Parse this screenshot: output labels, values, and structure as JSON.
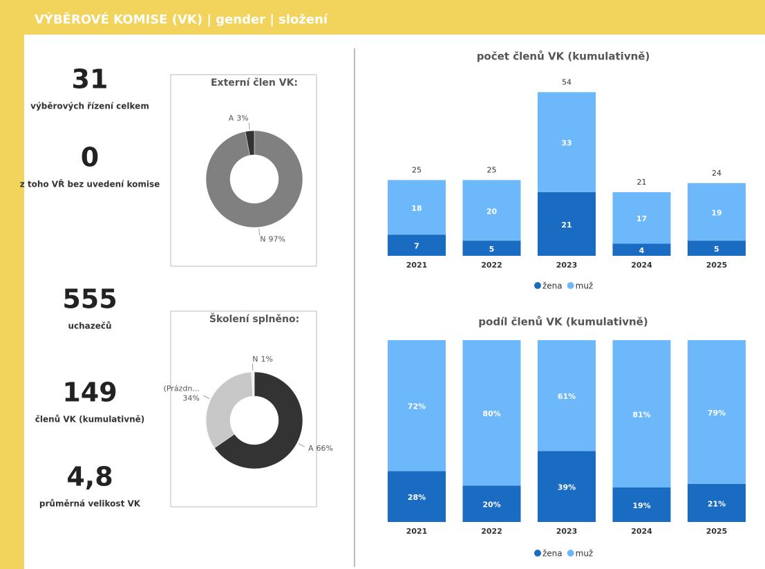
{
  "header": {
    "title": "VÝBĚROVÉ KOMISE (VK) | gender | složení"
  },
  "kpis": [
    {
      "value": 31,
      "label": "výběrových řízení celkem"
    },
    {
      "value": 0,
      "label": "z toho VŘ bez uvedení komise"
    },
    {
      "value": 555,
      "label": "uchazečů"
    },
    {
      "value": 149,
      "label": "členů VK (kumulativně)"
    },
    {
      "value": {
        "value": 4.8,
        "label": "4,8"
      },
      "label": "průměrná velikost VK"
    }
  ],
  "chart_data": [
    {
      "type": "pie",
      "title": "Externí člen VK:",
      "categories": [
        "N",
        "A"
      ],
      "values": [
        97,
        3
      ],
      "value_labels": [
        "97%",
        "3%"
      ],
      "colors": [
        "#808080",
        "#333333"
      ]
    },
    {
      "type": "pie",
      "title": "Školení splněno:",
      "categories": [
        "A",
        "(Prázdn...",
        "N"
      ],
      "values": [
        66,
        34,
        1
      ],
      "value_labels": [
        "66%",
        "34%",
        "1%"
      ],
      "colors": [
        "#333333",
        "#c8c8c8",
        "#f2f2f2"
      ]
    },
    {
      "type": "bar",
      "stacked": true,
      "title": "počet členů VK (kumulativně)",
      "categories": [
        "2021",
        "2022",
        "2023",
        "2024",
        "2025"
      ],
      "series": [
        {
          "name": "žena",
          "color": "#1a6cc2",
          "values": [
            7,
            5,
            21,
            4,
            5
          ]
        },
        {
          "name": "muž",
          "color": "#6db8fa",
          "values": [
            18,
            20,
            33,
            17,
            19
          ]
        }
      ],
      "totals": [
        25,
        25,
        54,
        21,
        24
      ],
      "ylim": [
        0,
        60
      ]
    },
    {
      "type": "bar",
      "stacked": true,
      "title": "podíl členů VK (kumulativně)",
      "categories": [
        "2021",
        "2022",
        "2023",
        "2024",
        "2025"
      ],
      "series": [
        {
          "name": "žena",
          "color": "#1a6cc2",
          "values": [
            28,
            20,
            39,
            19,
            21
          ],
          "value_labels": [
            "28%",
            "20%",
            "39%",
            "19%",
            "21%"
          ]
        },
        {
          "name": "muž",
          "color": "#6db8fa",
          "values": [
            72,
            80,
            61,
            81,
            79
          ],
          "value_labels": [
            "72%",
            "80%",
            "61%",
            "81%",
            "79%"
          ]
        }
      ],
      "ylim": [
        0,
        100
      ]
    }
  ]
}
